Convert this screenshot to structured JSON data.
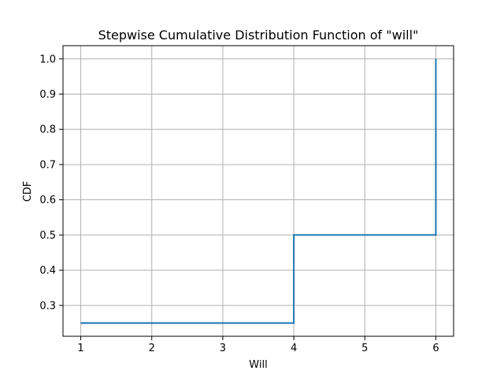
{
  "chart_data": {
    "type": "line",
    "title": "Stepwise Cumulative Distribution Function of \"will\"",
    "xlabel": "Will",
    "ylabel": "CDF",
    "xlim": [
      0.75,
      6.25
    ],
    "ylim": [
      0.2125,
      1.0375
    ],
    "grid": true,
    "x_ticks": [
      "1",
      "2",
      "3",
      "4",
      "5",
      "6"
    ],
    "y_ticks": [
      "0.3",
      "0.4",
      "0.5",
      "0.6",
      "0.7",
      "0.8",
      "0.9",
      "1.0"
    ],
    "series": [
      {
        "color": "#1f77b4",
        "step": "post",
        "x": [
          1,
          4,
          6,
          6
        ],
        "y": [
          0.25,
          0.5,
          0.5,
          1.0
        ]
      }
    ]
  }
}
